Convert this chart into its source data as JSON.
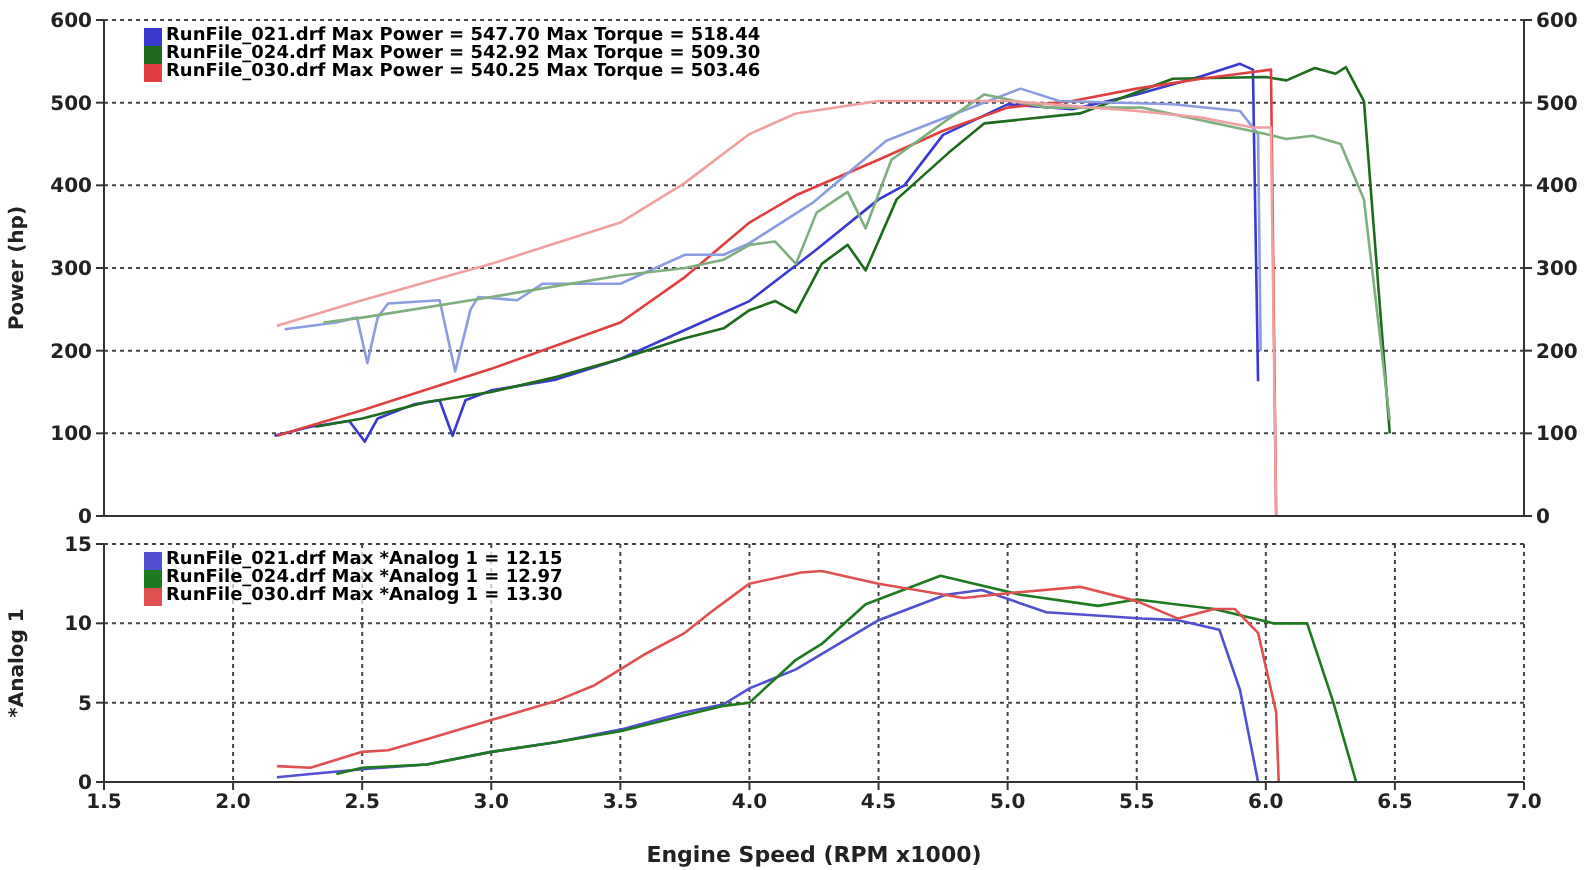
{
  "chart_data": [
    {
      "type": "line",
      "ylabel": "Power (hp)",
      "xlim": [
        1.5,
        7
      ],
      "xticks": [
        1.5,
        2,
        2.5,
        3,
        3.5,
        4,
        4.5,
        5,
        5.5,
        6,
        6.5,
        7
      ],
      "ylim": [
        0,
        600
      ],
      "yticks": [
        0,
        100,
        200,
        300,
        400,
        500,
        600
      ],
      "y2lim": [
        0,
        600
      ],
      "y2ticks": [
        0,
        100,
        200,
        300,
        400,
        500,
        600
      ],
      "tick_labels": "y",
      "grid": true,
      "legend": "top left",
      "marker": "none",
      "line_style": "solid",
      "series": [
        {
          "name": "RunFile_021.drf Max Power = 547.70 Max Torque = 518.44",
          "color": "#3a3ad0",
          "x": [
            2.16,
            2.3,
            2.45,
            2.51,
            2.56,
            2.7,
            2.8,
            2.85,
            2.9,
            3.0,
            3.25,
            3.5,
            3.75,
            4.0,
            4.25,
            4.5,
            4.6,
            4.75,
            5.0,
            5.25,
            5.5,
            5.75,
            5.9,
            5.95,
            5.97
          ],
          "values": [
            97,
            108,
            115,
            90,
            118,
            135,
            140,
            97,
            140,
            152,
            165,
            190,
            225,
            260,
            320,
            383,
            400,
            461,
            498,
            492,
            510,
            532,
            547,
            540,
            163
          ]
        },
        {
          "name": "RunFile_024.drf Max Power = 542.92 Max Torque = 509.30",
          "color": "#1e6b1e",
          "x": [
            2.32,
            2.5,
            2.75,
            3.0,
            3.25,
            3.5,
            3.75,
            3.9,
            4.0,
            4.1,
            4.18,
            4.28,
            4.38,
            4.45,
            4.57,
            4.77,
            4.91,
            5.28,
            5.64,
            6.0,
            6.08,
            6.19,
            6.27,
            6.31,
            6.38,
            6.48
          ],
          "values": [
            108,
            118,
            138,
            150,
            168,
            190,
            215,
            227,
            249,
            260,
            246,
            305,
            328,
            297,
            383,
            439,
            475,
            487,
            529,
            531,
            527,
            542,
            535,
            543,
            502,
            100
          ]
        },
        {
          "name": "RunFile_030.drf Max Power = 540.25 Max Torque = 503.46",
          "color": "#e04040",
          "x": [
            2.17,
            2.5,
            3.0,
            3.5,
            3.75,
            4.0,
            4.18,
            4.5,
            4.75,
            5.0,
            5.25,
            5.5,
            5.75,
            5.95,
            6.02,
            6.04
          ],
          "values": [
            97,
            128,
            178,
            234,
            289,
            355,
            388,
            431,
            466,
            494,
            502,
            517,
            529,
            537,
            540,
            0
          ]
        },
        {
          "color": "#8c9ce0",
          "x": [
            2.2,
            2.4,
            2.48,
            2.52,
            2.56,
            2.6,
            2.8,
            2.86,
            2.92,
            2.95,
            3.1,
            3.2,
            3.5,
            3.75,
            3.9,
            4.0,
            4.25,
            4.53,
            4.76,
            5.05,
            5.2,
            5.64,
            5.9,
            5.97,
            5.98
          ],
          "values": [
            226,
            234,
            240,
            185,
            240,
            257,
            261,
            175,
            250,
            265,
            261,
            281,
            281,
            316,
            316,
            330,
            380,
            454,
            482,
            517,
            502,
            498,
            490,
            462,
            200
          ]
        },
        {
          "color": "#7fae7f",
          "x": [
            2.35,
            2.5,
            3.0,
            3.5,
            3.75,
            3.9,
            4.0,
            4.1,
            4.18,
            4.26,
            4.38,
            4.45,
            4.55,
            4.76,
            4.91,
            5.15,
            5.52,
            6.0,
            6.08,
            6.18,
            6.29,
            6.38,
            6.48
          ],
          "values": [
            234,
            240,
            265,
            291,
            300,
            310,
            328,
            332,
            305,
            367,
            392,
            348,
            431,
            478,
            510,
            494,
            494,
            462,
            456,
            460,
            450,
            383,
            116
          ]
        },
        {
          "color": "#f0a0a0",
          "x": [
            2.17,
            2.5,
            3.0,
            3.5,
            3.75,
            4.0,
            4.18,
            4.5,
            5.0,
            5.5,
            5.75,
            5.95,
            6.02,
            6.04
          ],
          "values": [
            230,
            261,
            305,
            355,
            403,
            462,
            487,
            502,
            502,
            490,
            482,
            470,
            470,
            0
          ]
        }
      ]
    },
    {
      "type": "line",
      "xlabel": "Engine Speed (RPM x1000)",
      "ylabel": "*Analog 1",
      "xlim": [
        1.5,
        7
      ],
      "xticks": [
        1.5,
        {
          "value": 2,
          "label": "2.0"
        },
        2.5,
        {
          "value": 3,
          "label": "3.0"
        },
        3.5,
        {
          "value": 4,
          "label": "4.0"
        },
        4.5,
        {
          "value": 5,
          "label": "5.0"
        },
        5.5,
        {
          "value": 6,
          "label": "6.0"
        },
        6.5,
        {
          "value": 7,
          "label": "7.0"
        }
      ],
      "ylim": [
        0,
        15
      ],
      "yticks": [
        0,
        5,
        10,
        15
      ],
      "grid": true,
      "legend": "top left",
      "marker": "none",
      "line_style": "solid",
      "series": [
        {
          "name": "RunFile_021.drf Max *Analog 1 = 12.15",
          "color": "#5050d0",
          "x": [
            2.17,
            2.3,
            2.5,
            2.75,
            3.0,
            3.25,
            3.5,
            3.75,
            3.9,
            4.0,
            4.18,
            4.5,
            4.76,
            4.9,
            5.15,
            5.52,
            5.66,
            5.82,
            5.9,
            5.97
          ],
          "values": [
            0.3,
            0.5,
            0.8,
            1.1,
            1.9,
            2.5,
            3.3,
            4.4,
            4.9,
            5.9,
            7.1,
            10.2,
            11.8,
            12.1,
            10.7,
            10.3,
            10.2,
            9.6,
            5.8,
            0
          ]
        },
        {
          "name": "RunFile_024.drf Max *Analog 1 = 12.97",
          "color": "#1e7a1e",
          "x": [
            2.4,
            2.5,
            2.75,
            3.0,
            3.25,
            3.5,
            3.75,
            3.9,
            4.0,
            4.18,
            4.28,
            4.45,
            4.74,
            5.05,
            5.35,
            5.5,
            5.8,
            6.03,
            6.16,
            6.26,
            6.35
          ],
          "values": [
            0.5,
            0.9,
            1.1,
            1.9,
            2.5,
            3.2,
            4.2,
            4.8,
            5.0,
            7.7,
            8.7,
            11.2,
            13.0,
            11.8,
            11.1,
            11.5,
            10.9,
            10.0,
            10.0,
            5.1,
            0
          ]
        },
        {
          "name": "RunFile_030.drf Max *Analog 1 = 13.30",
          "color": "#e05050",
          "x": [
            2.17,
            2.3,
            2.5,
            2.6,
            2.75,
            3.0,
            3.25,
            3.4,
            3.5,
            3.6,
            3.75,
            3.85,
            4.0,
            4.2,
            4.28,
            4.5,
            4.83,
            5.0,
            5.28,
            5.5,
            5.66,
            5.8,
            5.88,
            5.97,
            6.04,
            6.05
          ],
          "values": [
            1.0,
            0.9,
            1.9,
            2.0,
            2.7,
            3.9,
            5.1,
            6.1,
            7.1,
            8.1,
            9.4,
            10.7,
            12.5,
            13.2,
            13.3,
            12.5,
            11.6,
            11.9,
            12.3,
            11.4,
            10.3,
            10.9,
            10.9,
            9.4,
            4.4,
            0
          ]
        }
      ]
    }
  ]
}
